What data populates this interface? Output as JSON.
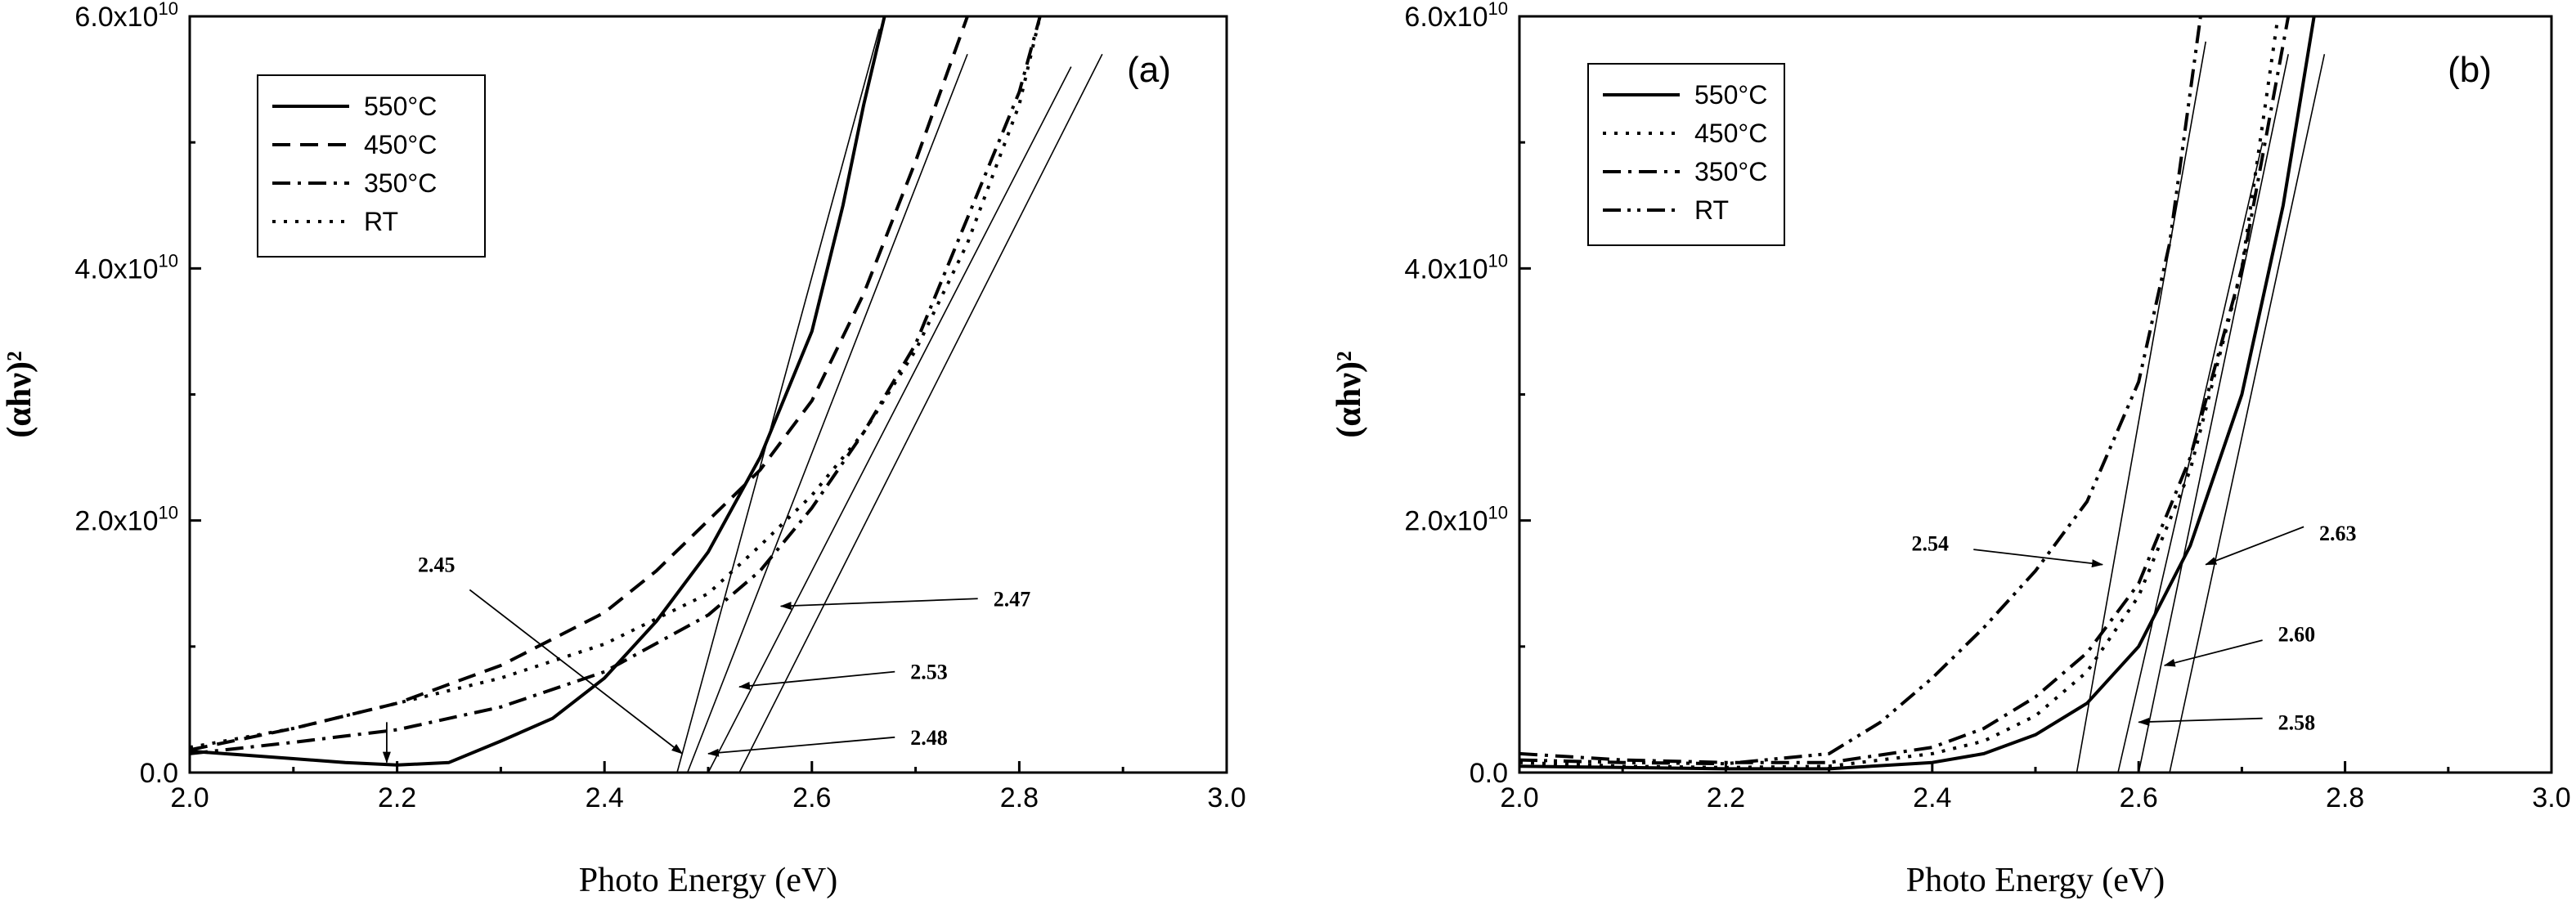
{
  "chart_data": [
    {
      "type": "line",
      "panel_label": "(a)",
      "xlabel": "Photo Energy (eV)",
      "ylabel": "(αhν)²",
      "xlim": [
        2.0,
        3.0
      ],
      "ylim": [
        0,
        60000000000.0
      ],
      "xticks": [
        2.0,
        2.2,
        2.4,
        2.6,
        2.8,
        3.0
      ],
      "xtick_labels": [
        "2.0",
        "2.2",
        "2.4",
        "2.6",
        "2.8",
        "3.0"
      ],
      "yticks": [
        0,
        20000000000.0,
        40000000000.0,
        60000000000.0
      ],
      "ytick_labels": [
        {
          "base": "0.0",
          "exp": ""
        },
        {
          "base": "2.0x10",
          "exp": "10"
        },
        {
          "base": "4.0x10",
          "exp": "10"
        },
        {
          "base": "6.0x10",
          "exp": "10"
        }
      ],
      "legend_position": "top-left",
      "series": [
        {
          "name": "550°C",
          "dash": "solid",
          "points": [
            [
              2.0,
              1700000000.0
            ],
            [
              2.05,
              1400000000.0
            ],
            [
              2.1,
              1100000000.0
            ],
            [
              2.15,
              800000000.0
            ],
            [
              2.2,
              600000000.0
            ],
            [
              2.25,
              800000000.0
            ],
            [
              2.3,
              2500000000.0
            ],
            [
              2.35,
              4300000000.0
            ],
            [
              2.4,
              7500000000.0
            ],
            [
              2.45,
              12000000000.0
            ],
            [
              2.5,
              17500000000.0
            ],
            [
              2.55,
              25000000000.0
            ],
            [
              2.6,
              35000000000.0
            ],
            [
              2.63,
              45000000000.0
            ],
            [
              2.65,
              53000000000.0
            ],
            [
              2.67,
              60000000000.0
            ]
          ]
        },
        {
          "name": "450°C",
          "dash": "dashed",
          "points": [
            [
              2.0,
              1800000000.0
            ],
            [
              2.1,
              3500000000.0
            ],
            [
              2.2,
              5500000000.0
            ],
            [
              2.3,
              8500000000.0
            ],
            [
              2.4,
              12700000000.0
            ],
            [
              2.45,
              16000000000.0
            ],
            [
              2.5,
              20000000000.0
            ],
            [
              2.55,
              24000000000.0
            ],
            [
              2.6,
              29500000000.0
            ],
            [
              2.65,
              38000000000.0
            ],
            [
              2.7,
              48500000000.0
            ],
            [
              2.75,
              60000000000.0
            ]
          ]
        },
        {
          "name": "350°C",
          "dash": "dashdot",
          "points": [
            [
              2.0,
              1500000000.0
            ],
            [
              2.1,
              2400000000.0
            ],
            [
              2.2,
              3400000000.0
            ],
            [
              2.3,
              5200000000.0
            ],
            [
              2.4,
              8000000000.0
            ],
            [
              2.5,
              12500000000.0
            ],
            [
              2.55,
              16000000000.0
            ],
            [
              2.6,
              21000000000.0
            ],
            [
              2.65,
              27000000000.0
            ],
            [
              2.7,
              34000000000.0
            ],
            [
              2.75,
              44000000000.0
            ],
            [
              2.8,
              54000000000.0
            ],
            [
              2.82,
              60000000000.0
            ]
          ]
        },
        {
          "name": "RT",
          "dash": "dotted",
          "points": [
            [
              2.0,
              2000000000.0
            ],
            [
              2.1,
              3500000000.0
            ],
            [
              2.2,
              5500000000.0
            ],
            [
              2.3,
              7500000000.0
            ],
            [
              2.4,
              10200000000.0
            ],
            [
              2.5,
              14200000000.0
            ],
            [
              2.55,
              18000000000.0
            ],
            [
              2.6,
              22000000000.0
            ],
            [
              2.65,
              27000000000.0
            ],
            [
              2.7,
              33500000000.0
            ],
            [
              2.75,
              42000000000.0
            ],
            [
              2.8,
              53000000000.0
            ],
            [
              2.82,
              60000000000.0
            ]
          ]
        }
      ],
      "fit_lines": [
        {
          "x0": 2.47,
          "x1": 2.665,
          "y1": 59000000000.0
        },
        {
          "x0": 2.48,
          "x1": 2.75,
          "y1": 57000000000.0
        },
        {
          "x0": 2.5,
          "x1": 2.85,
          "y1": 56000000000.0
        },
        {
          "x0": 2.53,
          "x1": 2.88,
          "y1": 57000000000.0
        }
      ],
      "annotations": [
        {
          "text": "2.45",
          "label_at": [
            2.22,
            16500000000.0
          ],
          "arrow_from": [
            2.27,
            14500000000.0
          ],
          "arrow_to": [
            2.475,
            1500000000.0
          ]
        },
        {
          "text": "2.47",
          "label_at": [
            2.775,
            13800000000.0
          ],
          "arrow_from": [
            2.76,
            13800000000.0
          ],
          "arrow_to": [
            2.57,
            13200000000.0
          ]
        },
        {
          "text": "2.53",
          "label_at": [
            2.695,
            8000000000.0
          ],
          "arrow_from": [
            2.68,
            8000000000.0
          ],
          "arrow_to": [
            2.53,
            6800000000.0
          ]
        },
        {
          "text": "2.48",
          "label_at": [
            2.695,
            2800000000.0
          ],
          "arrow_from": [
            2.68,
            2800000000.0
          ],
          "arrow_to": [
            2.5,
            1500000000.0
          ]
        },
        {
          "text": "",
          "label_at": null,
          "arrow_from": [
            2.19,
            4000000000.0
          ],
          "arrow_to": [
            2.19,
            800000000.0
          ]
        }
      ]
    },
    {
      "type": "line",
      "panel_label": "(b)",
      "xlabel": "Photo Energy (eV)",
      "ylabel": "(αhν)²",
      "xlim": [
        2.0,
        3.0
      ],
      "ylim": [
        0,
        60000000000.0
      ],
      "xticks": [
        2.0,
        2.2,
        2.4,
        2.6,
        2.8,
        3.0
      ],
      "xtick_labels": [
        "2.0",
        "2.2",
        "2.4",
        "2.6",
        "2.8",
        "3.0"
      ],
      "yticks": [
        0,
        20000000000.0,
        40000000000.0,
        60000000000.0
      ],
      "ytick_labels": [
        {
          "base": "0.0",
          "exp": ""
        },
        {
          "base": "2.0x10",
          "exp": "10"
        },
        {
          "base": "4.0x10",
          "exp": "10"
        },
        {
          "base": "6.0x10",
          "exp": "10"
        }
      ],
      "legend_position": "top-left",
      "series": [
        {
          "name": "550°C",
          "dash": "solid",
          "points": [
            [
              2.0,
              500000000.0
            ],
            [
              2.1,
              400000000.0
            ],
            [
              2.2,
              300000000.0
            ],
            [
              2.3,
              300000000.0
            ],
            [
              2.4,
              800000000.0
            ],
            [
              2.45,
              1500000000.0
            ],
            [
              2.5,
              3000000000.0
            ],
            [
              2.55,
              5500000000.0
            ],
            [
              2.6,
              10000000000.0
            ],
            [
              2.65,
              18000000000.0
            ],
            [
              2.7,
              30000000000.0
            ],
            [
              2.74,
              45000000000.0
            ],
            [
              2.77,
              60000000000.0
            ]
          ]
        },
        {
          "name": "450°C",
          "dash": "dotted",
          "points": [
            [
              2.0,
              800000000.0
            ],
            [
              2.1,
              500000000.0
            ],
            [
              2.2,
              400000000.0
            ],
            [
              2.3,
              500000000.0
            ],
            [
              2.4,
              1500000000.0
            ],
            [
              2.45,
              2500000000.0
            ],
            [
              2.5,
              4500000000.0
            ],
            [
              2.55,
              8000000000.0
            ],
            [
              2.6,
              14000000000.0
            ],
            [
              2.65,
              24000000000.0
            ],
            [
              2.7,
              40000000000.0
            ],
            [
              2.735,
              60000000000.0
            ]
          ]
        },
        {
          "name": "350°C",
          "dash": "dashdot",
          "points": [
            [
              2.0,
              1500000000.0
            ],
            [
              2.1,
              1000000000.0
            ],
            [
              2.2,
              800000000.0
            ],
            [
              2.3,
              800000000.0
            ],
            [
              2.4,
              2000000000.0
            ],
            [
              2.45,
              3500000000.0
            ],
            [
              2.5,
              6000000000.0
            ],
            [
              2.55,
              9500000000.0
            ],
            [
              2.6,
              15000000000.0
            ],
            [
              2.65,
              25000000000.0
            ],
            [
              2.7,
              40000000000.0
            ],
            [
              2.745,
              60000000000.0
            ]
          ]
        },
        {
          "name": "RT",
          "dash": "dashdotdot",
          "points": [
            [
              2.0,
              1000000000.0
            ],
            [
              2.1,
              800000000.0
            ],
            [
              2.2,
              700000000.0
            ],
            [
              2.3,
              1500000000.0
            ],
            [
              2.35,
              4000000000.0
            ],
            [
              2.4,
              7500000000.0
            ],
            [
              2.45,
              11500000000.0
            ],
            [
              2.5,
              16000000000.0
            ],
            [
              2.55,
              21500000000.0
            ],
            [
              2.6,
              31000000000.0
            ],
            [
              2.63,
              42000000000.0
            ],
            [
              2.66,
              60000000000.0
            ]
          ]
        }
      ],
      "fit_lines": [
        {
          "x0": 2.54,
          "x1": 2.665,
          "y1": 58000000000.0
        },
        {
          "x0": 2.58,
          "x1": 2.72,
          "y1": 50000000000.0
        },
        {
          "x0": 2.6,
          "x1": 2.745,
          "y1": 57000000000.0
        },
        {
          "x0": 2.63,
          "x1": 2.78,
          "y1": 57000000000.0
        }
      ],
      "annotations": [
        {
          "text": "2.54",
          "label_at": [
            2.38,
            18200000000.0
          ],
          "arrow_from": [
            2.44,
            17700000000.0
          ],
          "arrow_to": [
            2.565,
            16500000000.0
          ]
        },
        {
          "text": "2.63",
          "label_at": [
            2.775,
            19000000000.0
          ],
          "arrow_from": [
            2.76,
            19500000000.0
          ],
          "arrow_to": [
            2.665,
            16500000000.0
          ]
        },
        {
          "text": "2.60",
          "label_at": [
            2.735,
            11000000000.0
          ],
          "arrow_from": [
            2.72,
            10500000000.0
          ],
          "arrow_to": [
            2.625,
            8500000000.0
          ]
        },
        {
          "text": "2.58",
          "label_at": [
            2.735,
            4000000000.0
          ],
          "arrow_from": [
            2.72,
            4300000000.0
          ],
          "arrow_to": [
            2.6,
            4000000000.0
          ]
        }
      ]
    }
  ]
}
